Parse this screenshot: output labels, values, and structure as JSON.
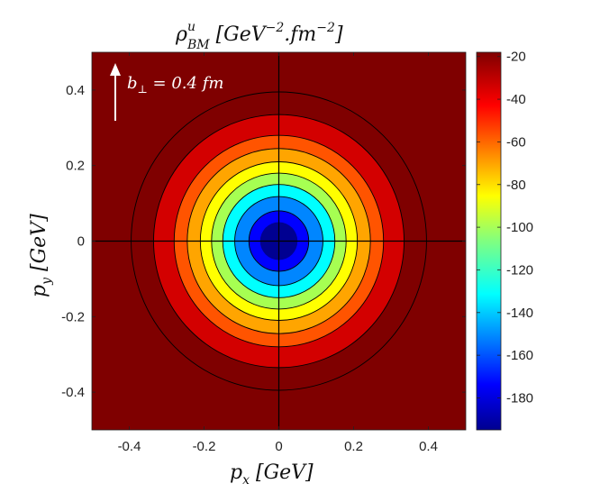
{
  "chart_data": {
    "type": "heatmap",
    "subtype": "filled-contour",
    "title": {
      "base": "ρ",
      "superscript": "u",
      "subscript": "BM",
      "units_open": " [GeV",
      "units_exp1": "−2",
      "units_mid": ".fm",
      "units_exp2": "−2",
      "units_close": "]"
    },
    "xlabel": {
      "base": "p",
      "subscript": "x",
      "units": " [GeV]"
    },
    "ylabel": {
      "base": "p",
      "subscript": "y",
      "units": " [GeV]"
    },
    "xlim": [
      -0.5,
      0.5
    ],
    "ylim": [
      -0.5,
      0.5
    ],
    "xticks": [
      -0.4,
      -0.2,
      0,
      0.2,
      0.4
    ],
    "yticks": [
      -0.4,
      -0.2,
      0,
      0.2,
      0.4
    ],
    "xtick_labels": [
      "-0.4",
      "-0.2",
      "0",
      "0.2",
      "0.4"
    ],
    "ytick_labels": [
      "-0.4",
      "-0.2",
      "0",
      "0.2",
      "0.4"
    ],
    "colorbar": {
      "range": [
        -195,
        -18
      ],
      "ticks": [
        -20,
        -40,
        -60,
        -80,
        -100,
        -120,
        -140,
        -160,
        -180
      ],
      "tick_labels": [
        "-20",
        "-40",
        "-60",
        "-80",
        "-100",
        "-120",
        "-140",
        "-160",
        "-180"
      ],
      "colormap": "jet"
    },
    "contours": [
      {
        "level": -20,
        "radius": 0.395,
        "color": "#7f0000"
      },
      {
        "level": -35,
        "radius": 0.335,
        "color": "#d30000"
      },
      {
        "level": -55,
        "radius": 0.28,
        "color": "#ff5400"
      },
      {
        "level": -70,
        "radius": 0.245,
        "color": "#ffa500"
      },
      {
        "level": -85,
        "radius": 0.21,
        "color": "#ffff00"
      },
      {
        "level": -100,
        "radius": 0.18,
        "color": "#a6ff52"
      },
      {
        "level": -115,
        "radius": 0.15,
        "color": "#00ffff"
      },
      {
        "level": -130,
        "radius": 0.118,
        "color": "#0086ff"
      },
      {
        "level": -150,
        "radius": 0.08,
        "color": "#0000ff"
      },
      {
        "level": -175,
        "radius": 0,
        "color": "#000091"
      }
    ],
    "background_color": "#7f0000",
    "annotation": {
      "base": "b",
      "subscript": "⊥",
      "text": " = 0.4 fm",
      "arrow_direction": "up"
    },
    "crosshair": {
      "x": 0,
      "y": 0
    }
  }
}
